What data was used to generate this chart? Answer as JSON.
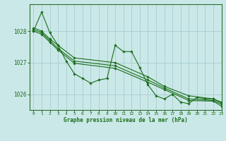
{
  "title": "Graphe pression niveau de la mer (hPa)",
  "bg_color": "#cbe8e8",
  "grid_color": "#a0c8c8",
  "line_color": "#1a6e1a",
  "spine_color": "#2d6e2d",
  "xlim": [
    -0.5,
    23
  ],
  "ylim": [
    1025.5,
    1028.85
  ],
  "yticks": [
    1026,
    1027,
    1028
  ],
  "xticks": [
    0,
    1,
    2,
    3,
    4,
    5,
    6,
    7,
    8,
    9,
    10,
    11,
    12,
    13,
    14,
    15,
    16,
    17,
    18,
    19,
    20,
    21,
    22,
    23
  ],
  "lines": [
    {
      "x": [
        0,
        1,
        2,
        3,
        4,
        5,
        6,
        7,
        8,
        9,
        10,
        11,
        12,
        13,
        14,
        15,
        16,
        17,
        18,
        19,
        20,
        21,
        22,
        23
      ],
      "y": [
        1028.0,
        1028.6,
        1027.95,
        1027.55,
        1027.05,
        1026.65,
        1026.5,
        1026.35,
        1026.45,
        1026.5,
        1027.55,
        1027.35,
        1027.35,
        1026.85,
        1026.3,
        1025.95,
        1025.85,
        1026.0,
        1025.75,
        1025.7,
        1025.9,
        1025.85,
        1025.85,
        1025.72
      ]
    },
    {
      "x": [
        0,
        1,
        2,
        3,
        5,
        10,
        14,
        16,
        19,
        22,
        23
      ],
      "y": [
        1028.1,
        1028.0,
        1027.75,
        1027.55,
        1027.15,
        1027.0,
        1026.55,
        1026.25,
        1025.95,
        1025.85,
        1025.75
      ]
    },
    {
      "x": [
        0,
        1,
        2,
        3,
        5,
        10,
        14,
        16,
        19,
        22,
        23
      ],
      "y": [
        1028.05,
        1027.95,
        1027.7,
        1027.45,
        1027.05,
        1026.9,
        1026.45,
        1026.2,
        1025.85,
        1025.8,
        1025.68
      ]
    },
    {
      "x": [
        0,
        1,
        2,
        3,
        5,
        10,
        14,
        16,
        19,
        22,
        23
      ],
      "y": [
        1028.0,
        1027.9,
        1027.65,
        1027.4,
        1026.98,
        1026.82,
        1026.38,
        1026.15,
        1025.8,
        1025.78,
        1025.62
      ]
    }
  ]
}
